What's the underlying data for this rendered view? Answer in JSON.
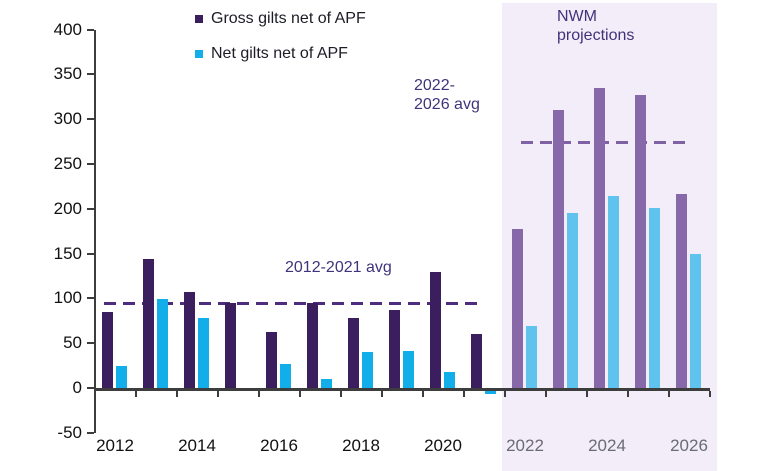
{
  "chart_data": {
    "type": "bar",
    "title": "",
    "xlabel": "",
    "ylabel": "",
    "categories": [
      2012,
      2013,
      2014,
      2015,
      2016,
      2017,
      2018,
      2019,
      2020,
      2021,
      2022,
      2023,
      2024,
      2025,
      2026
    ],
    "series": [
      {
        "name": "Gross gilts net of APF",
        "values": [
          85,
          144,
          107,
          95,
          62,
          95,
          78,
          87,
          129,
          60,
          177,
          310,
          335,
          327,
          217
        ],
        "color": "#3B1E5E",
        "color_projection": "#8768A8"
      },
      {
        "name": "Net gilts net of APF",
        "values": [
          25,
          99,
          78,
          0,
          27,
          10,
          40,
          41,
          18,
          -5,
          69,
          195,
          214,
          201,
          149
        ],
        "color": "#12AEEA",
        "color_projection": "#5FC3EE"
      }
    ],
    "ylim": [
      -50,
      400
    ],
    "ytick_step": 50,
    "yticks": [
      400,
      350,
      300,
      250,
      200,
      150,
      100,
      50,
      0,
      -50
    ],
    "xtick_labels": [
      "2012",
      "2014",
      "2016",
      "2018",
      "2020",
      "2022",
      "2024",
      "2026"
    ],
    "grid": "off",
    "legend_position": "top-left-inside",
    "projection_start_year": 2022,
    "projection_region_color": "#F2EDF8",
    "projection_label_lines": [
      "NWM",
      "projections"
    ],
    "avg_lines": [
      {
        "label": "2012-2021 avg",
        "value": 95,
        "color": "#4E2D7F",
        "span_years": [
          2011.73,
          2020.93
        ]
      },
      {
        "label": "2022-2026 avg",
        "label_lines": [
          "2022-",
          "2026 avg"
        ],
        "value": 275,
        "color": "#7E62A4",
        "span_years": [
          2021.9,
          2026.02
        ]
      }
    ],
    "axis_color": "#3D3D3D",
    "xlabel_color_hist": "#111111",
    "xlabel_color_projection": "#6B6B75"
  }
}
